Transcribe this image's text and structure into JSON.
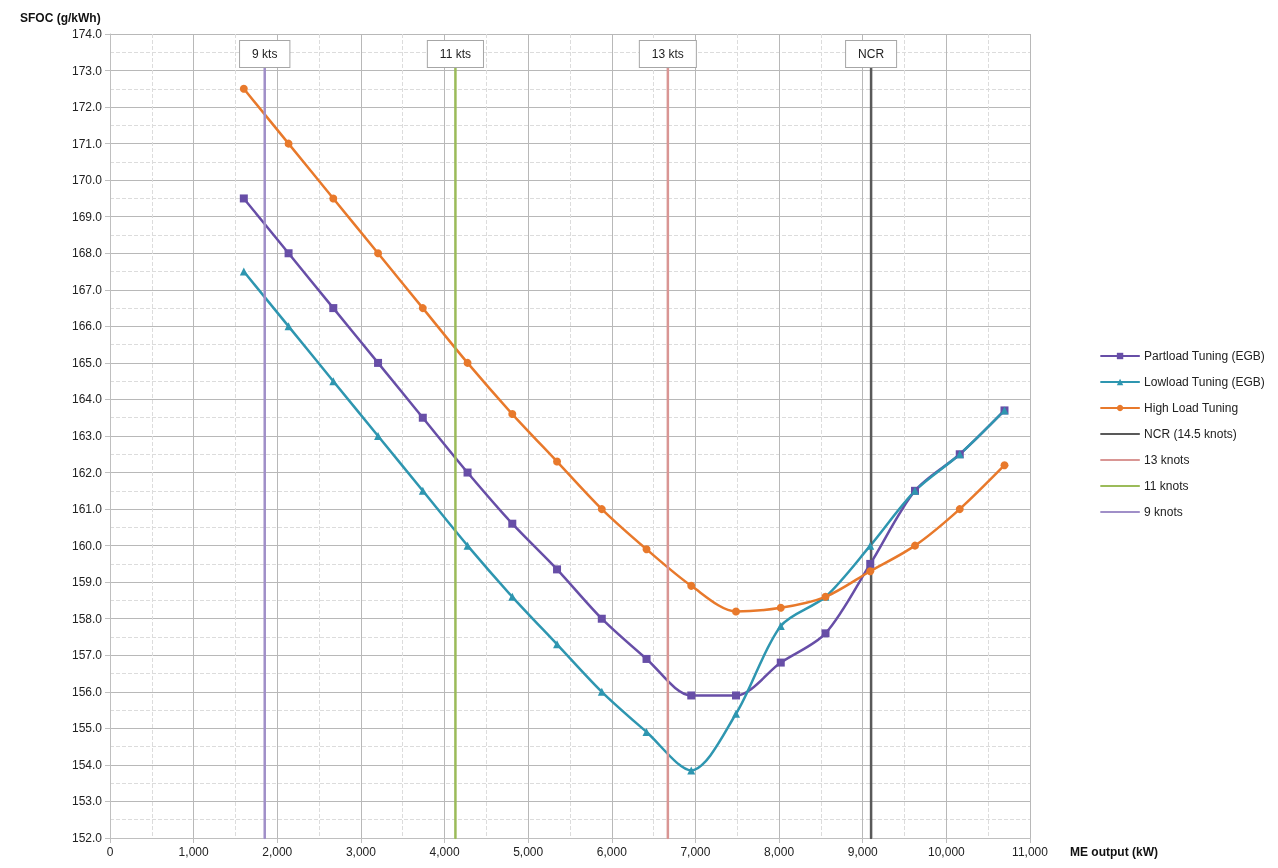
{
  "chart_data": {
    "type": "line",
    "ylabel": "SFOC (g/kWh)",
    "xlabel": "ME output (kW)",
    "x": [
      1600,
      2135,
      2670,
      3205,
      3740,
      4275,
      4810,
      5345,
      5880,
      6415,
      6950,
      7485,
      8020,
      8555,
      9090,
      9625,
      10160,
      10695
    ],
    "series": [
      {
        "name": "Partload Tuning (EGB)",
        "color": "#674ea7",
        "marker": "square",
        "values": [
          169.5,
          168.0,
          166.5,
          165.0,
          163.5,
          162.0,
          160.6,
          159.35,
          158.0,
          156.9,
          155.9,
          155.9,
          156.8,
          157.6,
          159.5,
          161.5,
          162.5,
          163.7
        ]
      },
      {
        "name": "Lowload Tuning (EGB)",
        "color": "#2e96b0",
        "marker": "triangle",
        "values": [
          167.5,
          166.0,
          164.5,
          163.0,
          161.5,
          160.0,
          158.6,
          157.3,
          156.0,
          154.9,
          153.85,
          155.4,
          157.8,
          158.6,
          160.0,
          161.5,
          162.5,
          163.7
        ]
      },
      {
        "name": "High Load Tuning",
        "color": "#e8792b",
        "marker": "circle",
        "values": [
          172.5,
          171.0,
          169.5,
          168.0,
          166.5,
          165.0,
          163.6,
          162.3,
          161.0,
          159.9,
          158.9,
          158.2,
          158.3,
          158.6,
          159.3,
          160.0,
          161.0,
          162.2
        ]
      },
      {
        "name": "NCR (14.5 knots)",
        "color": "#595959",
        "marker": "none",
        "x": [
          9100,
          9100
        ],
        "values": [
          152,
          173.1
        ]
      },
      {
        "name": "13 knots",
        "color": "#d99694",
        "marker": "none",
        "x": [
          6670,
          6670
        ],
        "values": [
          152,
          173.1
        ]
      },
      {
        "name": "11 knots",
        "color": "#9bbb59",
        "marker": "none",
        "x": [
          4130,
          4130
        ],
        "values": [
          152,
          173.1
        ]
      },
      {
        "name": "9 knots",
        "color": "#a08fc8",
        "marker": "none",
        "x": [
          1850,
          1850
        ],
        "values": [
          152,
          173.1
        ]
      }
    ],
    "annotations": [
      {
        "text": "9 kts",
        "x": 1850,
        "y": 173.1
      },
      {
        "text": "11 kts",
        "x": 4130,
        "y": 173.1
      },
      {
        "text": "13 kts",
        "x": 6670,
        "y": 173.1
      },
      {
        "text": "NCR",
        "x": 9100,
        "y": 173.1
      }
    ],
    "xlim": [
      0,
      11000
    ],
    "xticks": [
      0,
      {
        "value": 1000,
        "label": "1,000"
      },
      {
        "value": 2000,
        "label": "2,000"
      },
      {
        "value": 3000,
        "label": "3,000"
      },
      {
        "value": 4000,
        "label": "4,000"
      },
      {
        "value": 5000,
        "label": "5,000"
      },
      {
        "value": 6000,
        "label": "6,000"
      },
      {
        "value": 7000,
        "label": "7,000"
      },
      {
        "value": 8000,
        "label": "8,000"
      },
      {
        "value": 9000,
        "label": "9,000"
      },
      {
        "value": 10000,
        "label": "10,000"
      },
      {
        "value": 11000,
        "label": "11,000"
      }
    ],
    "ylim": [
      152,
      174
    ],
    "yticks": [
      {
        "value": 152,
        "label": "152.0"
      },
      {
        "value": 153,
        "label": "153.0"
      },
      {
        "value": 154,
        "label": "154.0"
      },
      {
        "value": 155,
        "label": "155.0"
      },
      {
        "value": 156,
        "label": "156.0"
      },
      {
        "value": 157,
        "label": "157.0"
      },
      {
        "value": 158,
        "label": "158.0"
      },
      {
        "value": 159,
        "label": "159.0"
      },
      {
        "value": 160,
        "label": "160.0"
      },
      {
        "value": 161,
        "label": "161.0"
      },
      {
        "value": 162,
        "label": "162.0"
      },
      {
        "value": 163,
        "label": "163.0"
      },
      {
        "value": 164,
        "label": "164.0"
      },
      {
        "value": 165,
        "label": "165.0"
      },
      {
        "value": 166,
        "label": "166.0"
      },
      {
        "value": 167,
        "label": "167.0"
      },
      {
        "value": 168,
        "label": "168.0"
      },
      {
        "value": 169,
        "label": "169.0"
      },
      {
        "value": 170,
        "label": "170.0"
      },
      {
        "value": 171,
        "label": "171.0"
      },
      {
        "value": 172,
        "label": "172.0"
      },
      {
        "value": 173,
        "label": "173.0"
      },
      {
        "value": 174,
        "label": "174.0"
      }
    ],
    "grid": true,
    "legend": "right"
  }
}
